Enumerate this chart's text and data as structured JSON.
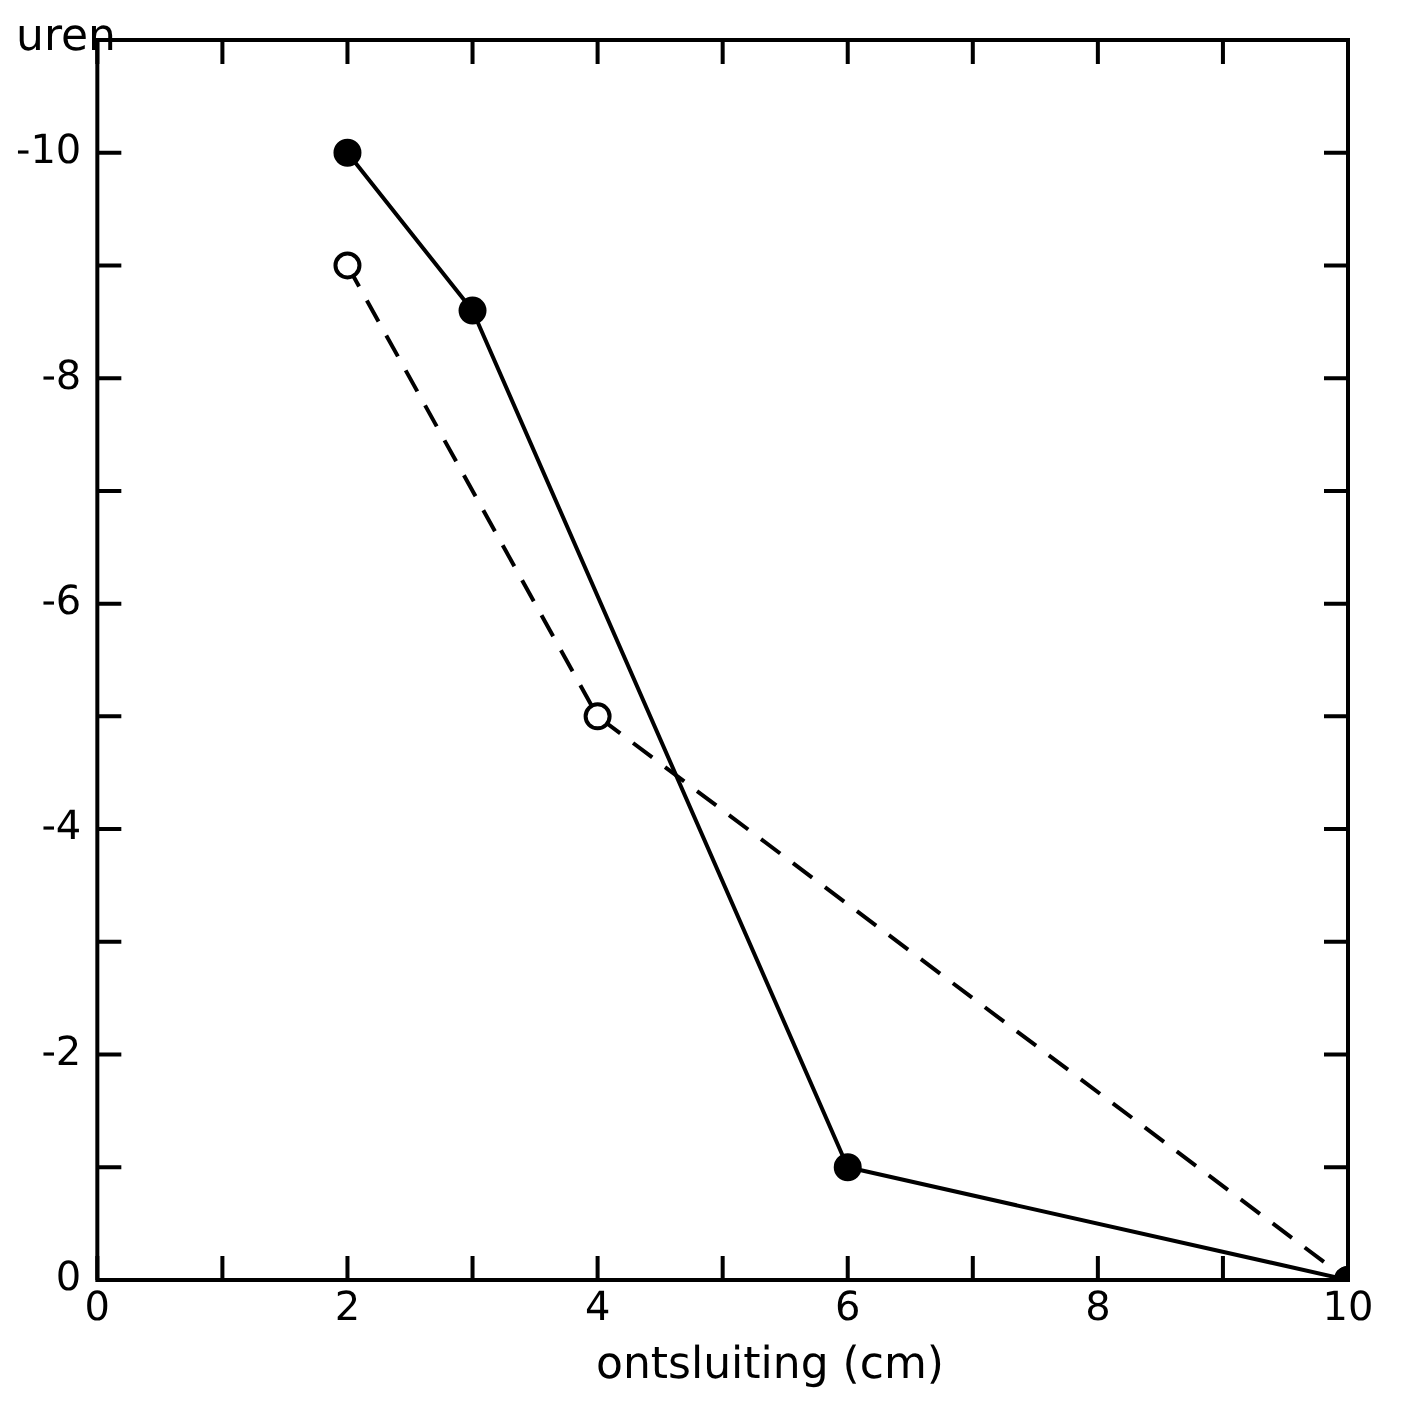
{
  "chart_data": {
    "type": "line",
    "xlabel": "ontsluiting (cm)",
    "ylabel": "uren",
    "xlim": [
      0,
      10
    ],
    "ylim": [
      0,
      -11
    ],
    "xticks": [
      0,
      {
        "value": 1,
        "label": null
      },
      2,
      {
        "value": 3,
        "label": null
      },
      4,
      {
        "value": 5,
        "label": null
      },
      6,
      {
        "value": 7,
        "label": null
      },
      8,
      {
        "value": 9,
        "label": null
      },
      10
    ],
    "yticks": [
      0,
      {
        "value": -1,
        "label": null
      },
      -2,
      {
        "value": -3,
        "label": null
      },
      -4,
      {
        "value": -5,
        "label": null
      },
      -6,
      {
        "value": -7,
        "label": null
      },
      -8,
      {
        "value": -9,
        "label": null
      },
      -10
    ],
    "grid": false,
    "legend": false,
    "marker": "circle",
    "series": [
      {
        "color": "#000000",
        "line_style": "solid",
        "x": [
          2,
          3,
          6,
          10
        ],
        "values": [
          -10,
          -8.6,
          -1,
          0
        ]
      },
      {
        "color": "#000000",
        "line_style": "dashed",
        "x": [
          2,
          4,
          10
        ],
        "values": [
          -9,
          -5,
          0
        ]
      }
    ]
  }
}
